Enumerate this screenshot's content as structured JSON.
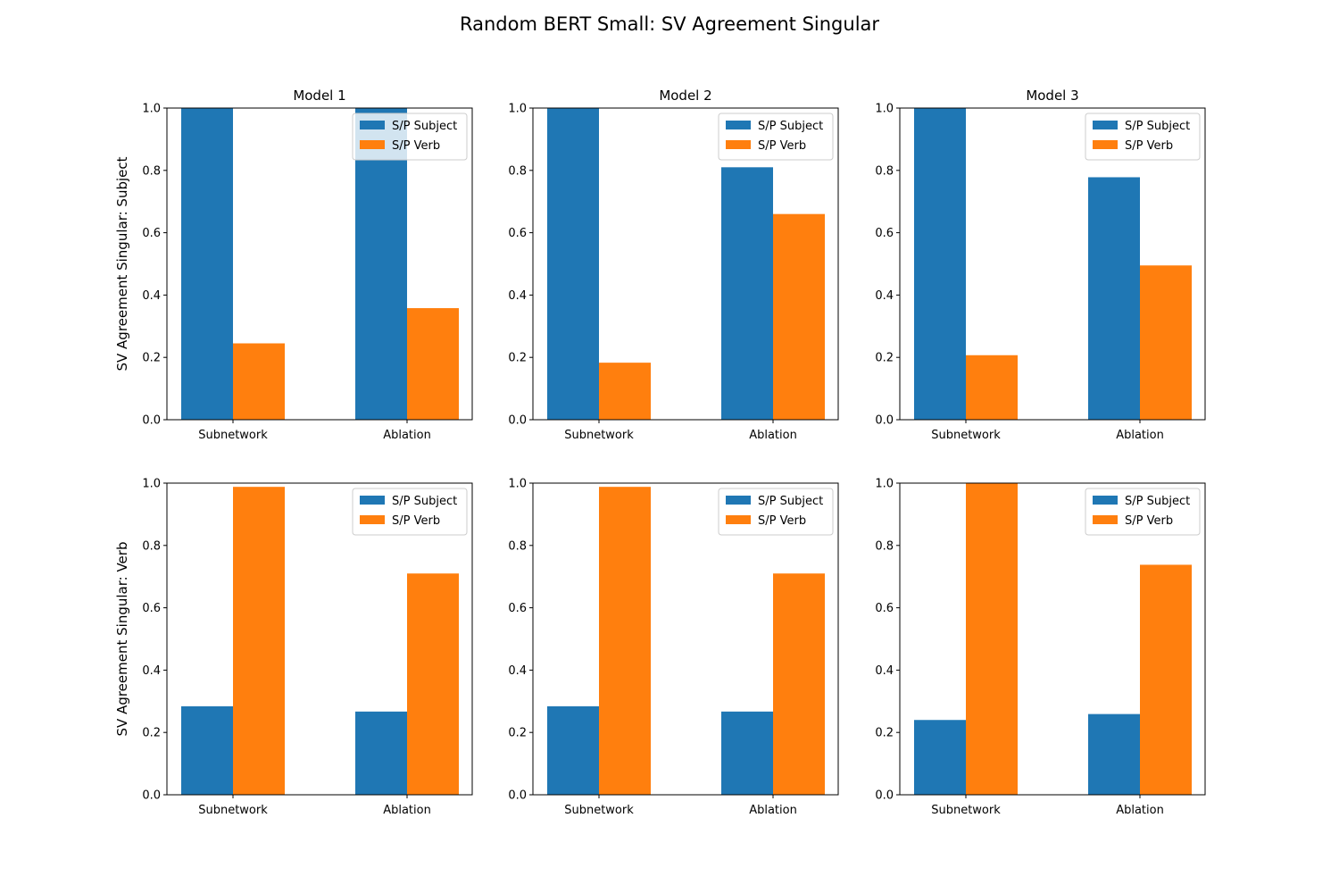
{
  "figure": {
    "suptitle": "Random BERT Small: SV Agreement Singular"
  },
  "colors": {
    "subject": "#1f77b4",
    "verb": "#ff7f0e"
  },
  "chart_data": [
    {
      "type": "bar",
      "title": "Model 1",
      "ylabel": "SV Agreement Singular: Subject",
      "ylim": [
        0,
        1.0
      ],
      "yticks": [
        "0.0",
        "0.2",
        "0.4",
        "0.6",
        "0.8",
        "1.0"
      ],
      "categories": [
        "Subnetwork",
        "Ablation"
      ],
      "legend_placement": "upper right",
      "series": [
        {
          "name": "S/P Subject",
          "values": [
            1.0,
            1.0
          ]
        },
        {
          "name": "S/P Verb",
          "values": [
            0.245,
            0.358
          ]
        }
      ]
    },
    {
      "type": "bar",
      "title": "Model 2",
      "ylabel": "",
      "ylim": [
        0,
        1.0
      ],
      "yticks": [
        "0.0",
        "0.2",
        "0.4",
        "0.6",
        "0.8",
        "1.0"
      ],
      "categories": [
        "Subnetwork",
        "Ablation"
      ],
      "legend_placement": "upper right",
      "series": [
        {
          "name": "S/P Subject",
          "values": [
            1.0,
            0.81
          ]
        },
        {
          "name": "S/P Verb",
          "values": [
            0.183,
            0.66
          ]
        }
      ]
    },
    {
      "type": "bar",
      "title": "Model 3",
      "ylabel": "",
      "ylim": [
        0,
        1.0
      ],
      "yticks": [
        "0.0",
        "0.2",
        "0.4",
        "0.6",
        "0.8",
        "1.0"
      ],
      "categories": [
        "Subnetwork",
        "Ablation"
      ],
      "legend_placement": "upper right",
      "series": [
        {
          "name": "S/P Subject",
          "values": [
            1.0,
            0.778
          ]
        },
        {
          "name": "S/P Verb",
          "values": [
            0.207,
            0.495
          ]
        }
      ]
    },
    {
      "type": "bar",
      "title": "",
      "ylabel": "SV Agreement Singular: Verb",
      "ylim": [
        0,
        1.0
      ],
      "yticks": [
        "0.0",
        "0.2",
        "0.4",
        "0.6",
        "0.8",
        "1.0"
      ],
      "categories": [
        "Subnetwork",
        "Ablation"
      ],
      "legend_placement": "upper right",
      "series": [
        {
          "name": "S/P Subject",
          "values": [
            0.284,
            0.267
          ]
        },
        {
          "name": "S/P Verb",
          "values": [
            0.988,
            0.71
          ]
        }
      ]
    },
    {
      "type": "bar",
      "title": "",
      "ylabel": "",
      "ylim": [
        0,
        1.0
      ],
      "yticks": [
        "0.0",
        "0.2",
        "0.4",
        "0.6",
        "0.8",
        "1.0"
      ],
      "categories": [
        "Subnetwork",
        "Ablation"
      ],
      "legend_placement": "upper right",
      "series": [
        {
          "name": "S/P Subject",
          "values": [
            0.284,
            0.267
          ]
        },
        {
          "name": "S/P Verb",
          "values": [
            0.988,
            0.71
          ]
        }
      ]
    },
    {
      "type": "bar",
      "title": "",
      "ylabel": "",
      "ylim": [
        0,
        1.0
      ],
      "yticks": [
        "0.0",
        "0.2",
        "0.4",
        "0.6",
        "0.8",
        "1.0"
      ],
      "categories": [
        "Subnetwork",
        "Ablation"
      ],
      "legend_placement": "upper right",
      "series": [
        {
          "name": "S/P Subject",
          "values": [
            0.24,
            0.259
          ]
        },
        {
          "name": "S/P Verb",
          "values": [
            1.0,
            0.738
          ]
        }
      ]
    }
  ]
}
